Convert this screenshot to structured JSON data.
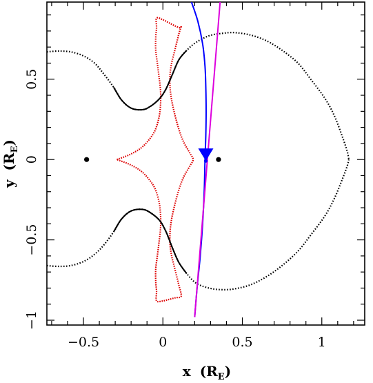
{
  "chart_data": {
    "type": "scatter",
    "xlabel": {
      "var": "x",
      "open": "(R",
      "sub": "E",
      "close": ")"
    },
    "ylabel": {
      "var": "y",
      "open": "(R",
      "sub": "E",
      "close": ")"
    },
    "xlim": [
      -0.73,
      1.27
    ],
    "ylim": [
      -1.03,
      0.98
    ],
    "xticks": [
      {
        "v": -0.5,
        "label": "−0.5"
      },
      {
        "v": 0,
        "label": "0"
      },
      {
        "v": 0.5,
        "label": "0.5"
      },
      {
        "v": 1,
        "label": "1"
      }
    ],
    "yticks": [
      {
        "v": -1,
        "label": "−1"
      },
      {
        "v": -0.5,
        "label": "−0.5"
      },
      {
        "v": 0,
        "label": "0"
      },
      {
        "v": 0.5,
        "label": "0.5"
      }
    ],
    "lenses": [
      {
        "x": -0.48,
        "y": 0.0
      },
      {
        "x": 0.35,
        "y": 0.0
      }
    ],
    "source_marker": {
      "x": 0.27,
      "y": 0.0,
      "color": "#0000ff"
    },
    "colors": {
      "caustic": "#dd0000",
      "critical": "#000000",
      "trajectory": "#0000ff",
      "trajectory_alt": "#dd00dd"
    },
    "series": [
      {
        "kind": "caustic",
        "points": [
          [
            -0.29,
            0.0
          ],
          [
            -0.21,
            0.03
          ],
          [
            -0.14,
            0.07
          ],
          [
            -0.09,
            0.12
          ],
          [
            -0.05,
            0.18
          ],
          [
            -0.025,
            0.26
          ],
          [
            -0.015,
            0.34
          ],
          [
            -0.015,
            0.43
          ],
          [
            -0.025,
            0.52
          ],
          [
            -0.035,
            0.6
          ],
          [
            -0.045,
            0.68
          ],
          [
            -0.045,
            0.76
          ],
          [
            -0.04,
            0.82
          ],
          [
            -0.04,
            0.88
          ],
          [
            0.0,
            0.87
          ],
          [
            0.04,
            0.85
          ],
          [
            0.08,
            0.83
          ],
          [
            0.11,
            0.82
          ],
          [
            0.115,
            0.83
          ],
          [
            0.1,
            0.78
          ],
          [
            0.085,
            0.72
          ],
          [
            0.07,
            0.66
          ],
          [
            0.055,
            0.6
          ],
          [
            0.045,
            0.53
          ],
          [
            0.045,
            0.45
          ],
          [
            0.055,
            0.37
          ],
          [
            0.075,
            0.28
          ],
          [
            0.1,
            0.19
          ],
          [
            0.13,
            0.11
          ],
          [
            0.17,
            0.04
          ],
          [
            0.19,
            0.0
          ],
          [
            0.17,
            -0.04
          ],
          [
            0.13,
            -0.11
          ],
          [
            0.1,
            -0.19
          ],
          [
            0.075,
            -0.28
          ],
          [
            0.055,
            -0.37
          ],
          [
            0.045,
            -0.45
          ],
          [
            0.045,
            -0.53
          ],
          [
            0.055,
            -0.6
          ],
          [
            0.07,
            -0.66
          ],
          [
            0.085,
            -0.72
          ],
          [
            0.1,
            -0.78
          ],
          [
            0.115,
            -0.85
          ],
          [
            0.08,
            -0.86
          ],
          [
            0.04,
            -0.87
          ],
          [
            0.0,
            -0.88
          ],
          [
            -0.04,
            -0.88
          ],
          [
            -0.04,
            -0.82
          ],
          [
            -0.045,
            -0.76
          ],
          [
            -0.045,
            -0.68
          ],
          [
            -0.035,
            -0.6
          ],
          [
            -0.025,
            -0.52
          ],
          [
            -0.015,
            -0.43
          ],
          [
            -0.015,
            -0.34
          ],
          [
            -0.025,
            -0.26
          ],
          [
            -0.05,
            -0.18
          ],
          [
            -0.09,
            -0.12
          ],
          [
            -0.14,
            -0.07
          ],
          [
            -0.21,
            -0.03
          ],
          [
            -0.29,
            0.0
          ]
        ]
      },
      {
        "kind": "critical-upper",
        "points": [
          [
            -0.73,
            0.67
          ],
          [
            -0.66,
            0.675
          ],
          [
            -0.58,
            0.67
          ],
          [
            -0.5,
            0.645
          ],
          [
            -0.43,
            0.6
          ],
          [
            -0.37,
            0.53
          ],
          [
            -0.31,
            0.45
          ],
          [
            -0.26,
            0.37
          ],
          [
            -0.2,
            0.32
          ],
          [
            -0.13,
            0.31
          ],
          [
            -0.08,
            0.33
          ],
          [
            -0.02,
            0.38
          ],
          [
            0.02,
            0.44
          ],
          [
            0.06,
            0.53
          ],
          [
            0.1,
            0.62
          ],
          [
            0.15,
            0.68
          ],
          [
            0.21,
            0.73
          ],
          [
            0.29,
            0.77
          ],
          [
            0.37,
            0.785
          ],
          [
            0.45,
            0.79
          ],
          [
            0.55,
            0.775
          ],
          [
            0.65,
            0.74
          ],
          [
            0.75,
            0.68
          ],
          [
            0.85,
            0.6
          ],
          [
            0.93,
            0.5
          ],
          [
            1.02,
            0.38
          ],
          [
            1.08,
            0.27
          ],
          [
            1.13,
            0.14
          ],
          [
            1.16,
            0.05
          ],
          [
            1.17,
            0.0
          ]
        ]
      },
      {
        "kind": "critical-lower",
        "points": [
          [
            -0.73,
            -0.66
          ],
          [
            -0.66,
            -0.665
          ],
          [
            -0.58,
            -0.66
          ],
          [
            -0.5,
            -0.635
          ],
          [
            -0.43,
            -0.59
          ],
          [
            -0.37,
            -0.53
          ],
          [
            -0.31,
            -0.45
          ],
          [
            -0.26,
            -0.37
          ],
          [
            -0.2,
            -0.32
          ],
          [
            -0.13,
            -0.31
          ],
          [
            -0.08,
            -0.33
          ],
          [
            -0.02,
            -0.38
          ],
          [
            0.02,
            -0.45
          ],
          [
            0.06,
            -0.55
          ],
          [
            0.1,
            -0.64
          ],
          [
            0.15,
            -0.71
          ],
          [
            0.21,
            -0.77
          ],
          [
            0.29,
            -0.8
          ],
          [
            0.37,
            -0.81
          ],
          [
            0.45,
            -0.805
          ],
          [
            0.55,
            -0.78
          ],
          [
            0.65,
            -0.73
          ],
          [
            0.75,
            -0.66
          ],
          [
            0.85,
            -0.57
          ],
          [
            0.93,
            -0.47
          ],
          [
            1.02,
            -0.35
          ],
          [
            1.08,
            -0.24
          ],
          [
            1.13,
            -0.12
          ],
          [
            1.16,
            -0.04
          ],
          [
            1.17,
            0.0
          ]
        ]
      },
      {
        "kind": "trajectory-blue",
        "points": [
          [
            0.18,
            0.98
          ],
          [
            0.22,
            0.86
          ],
          [
            0.25,
            0.72
          ],
          [
            0.265,
            0.58
          ],
          [
            0.27,
            0.45
          ],
          [
            0.272,
            0.3
          ],
          [
            0.27,
            0.15
          ],
          [
            0.265,
            0.0
          ],
          [
            0.26,
            -0.2
          ],
          [
            0.25,
            -0.4
          ],
          [
            0.235,
            -0.6
          ],
          [
            0.215,
            -0.8
          ],
          [
            0.2,
            -0.98
          ]
        ]
      },
      {
        "kind": "trajectory-magenta",
        "points": [
          [
            0.36,
            0.98
          ],
          [
            0.2,
            -0.98
          ]
        ]
      }
    ]
  }
}
